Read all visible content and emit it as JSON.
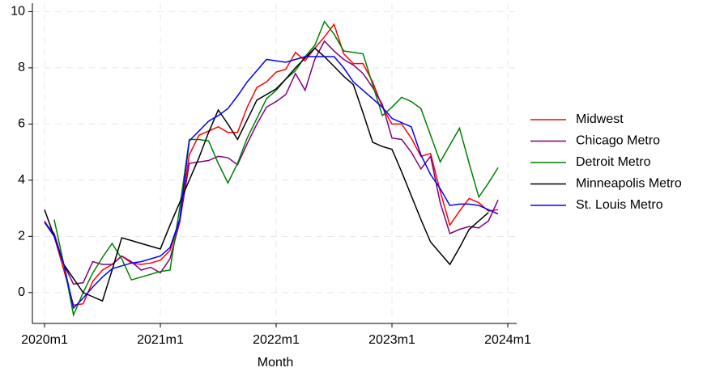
{
  "chart_data": {
    "type": "line",
    "x_label": "Month",
    "x": [
      "2020m1",
      "2020m2",
      "2020m3",
      "2020m4",
      "2020m5",
      "2020m6",
      "2020m7",
      "2020m8",
      "2020m9",
      "2020m10",
      "2020m11",
      "2020m12",
      "2021m1",
      "2021m2",
      "2021m3",
      "2021m4",
      "2021m5",
      "2021m6",
      "2021m7",
      "2021m8",
      "2021m9",
      "2021m10",
      "2021m11",
      "2021m12",
      "2022m1",
      "2022m2",
      "2022m3",
      "2022m4",
      "2022m5",
      "2022m6",
      "2022m7",
      "2022m8",
      "2022m9",
      "2022m10",
      "2022m11",
      "2022m12",
      "2023m1",
      "2023m2",
      "2023m3",
      "2023m4",
      "2023m5",
      "2023m6",
      "2023m7",
      "2023m8",
      "2023m9",
      "2023m10",
      "2023m11",
      "2023m12"
    ],
    "xlim": [
      "2020m1",
      "2024m1"
    ],
    "xticks": [
      "2020m1",
      "2021m1",
      "2022m1",
      "2023m1",
      "2024m1"
    ],
    "ylim": [
      -1.1,
      10.3
    ],
    "yticks": [
      0,
      2,
      4,
      6,
      8,
      10
    ],
    "grid": true,
    "legend": "right",
    "series": [
      {
        "name": "Midwest",
        "color": "#ff0000",
        "values": [
          2.55,
          2.0,
          0.8,
          -0.45,
          -0.4,
          0.4,
          0.8,
          1.0,
          1.3,
          1.05,
          1.0,
          1.05,
          1.15,
          1.5,
          2.5,
          4.9,
          5.6,
          5.75,
          5.9,
          5.7,
          5.7,
          6.6,
          7.3,
          7.5,
          7.85,
          7.95,
          8.55,
          8.25,
          8.7,
          9.1,
          9.55,
          8.5,
          8.15,
          8.15,
          7.5,
          6.6,
          6.0,
          6.0,
          5.5,
          4.85,
          4.95,
          3.6,
          2.4,
          2.9,
          3.35,
          3.2,
          2.9,
          2.95
        ]
      },
      {
        "name": "Chicago Metro",
        "color": "#800080",
        "values": [
          2.5,
          2.1,
          1.0,
          0.3,
          0.35,
          1.1,
          1.0,
          1.0,
          1.3,
          1.1,
          0.8,
          0.9,
          0.7,
          1.2,
          2.5,
          4.6,
          4.65,
          4.7,
          4.85,
          4.8,
          4.55,
          5.3,
          6.0,
          6.6,
          6.8,
          7.05,
          7.8,
          7.2,
          8.3,
          8.95,
          8.6,
          8.3,
          8.1,
          7.8,
          7.3,
          6.7,
          5.5,
          5.45,
          5.0,
          4.4,
          4.85,
          3.2,
          2.1,
          2.25,
          2.35,
          2.3,
          2.55,
          3.3
        ]
      },
      {
        "name": "Detroit Metro",
        "color": "#008000",
        "values": [
          null,
          2.6,
          1.0,
          -0.8,
          0.0,
          0.7,
          1.25,
          1.75,
          1.2,
          0.45,
          0.55,
          0.65,
          0.75,
          0.8,
          3.0,
          5.45,
          5.45,
          5.4,
          4.6,
          3.9,
          4.6,
          5.5,
          6.2,
          6.9,
          7.2,
          7.6,
          7.9,
          8.4,
          8.8,
          9.65,
          9.2,
          8.6,
          8.55,
          8.5,
          7.4,
          6.3,
          6.6,
          6.95,
          6.8,
          6.55,
          5.6,
          4.65,
          5.25,
          5.85,
          4.6,
          3.4,
          3.9,
          4.45
        ]
      },
      {
        "name": "Minneapolis Metro",
        "color": "#000000",
        "values": [
          2.95,
          2.0,
          1.0,
          0.5,
          0.0,
          -0.15,
          -0.3,
          0.8,
          1.95,
          1.85,
          1.75,
          1.65,
          1.55,
          2.4,
          3.2,
          4.0,
          4.8,
          5.7,
          6.5,
          6.0,
          5.45,
          6.15,
          6.85,
          7.05,
          7.25,
          7.6,
          8.0,
          8.35,
          8.7,
          8.4,
          8.05,
          7.7,
          7.4,
          6.4,
          5.35,
          5.2,
          5.1,
          4.3,
          3.45,
          2.6,
          1.8,
          1.4,
          1.0,
          1.6,
          2.25,
          2.55,
          2.85,
          null
        ]
      },
      {
        "name": "St. Louis Metro",
        "color": "#0000ff",
        "values": [
          2.5,
          2.0,
          1.0,
          -0.55,
          -0.2,
          0.2,
          0.55,
          0.85,
          0.95,
          1.05,
          1.1,
          1.2,
          1.3,
          1.6,
          2.6,
          5.4,
          5.75,
          6.1,
          6.3,
          6.55,
          7.0,
          7.5,
          7.9,
          8.3,
          8.25,
          8.2,
          8.3,
          8.4,
          8.4,
          8.4,
          8.4,
          8.0,
          7.5,
          7.2,
          6.9,
          6.6,
          6.2,
          6.05,
          5.9,
          4.9,
          4.2,
          3.7,
          3.1,
          3.15,
          3.15,
          3.1,
          2.95,
          2.8
        ]
      }
    ]
  }
}
